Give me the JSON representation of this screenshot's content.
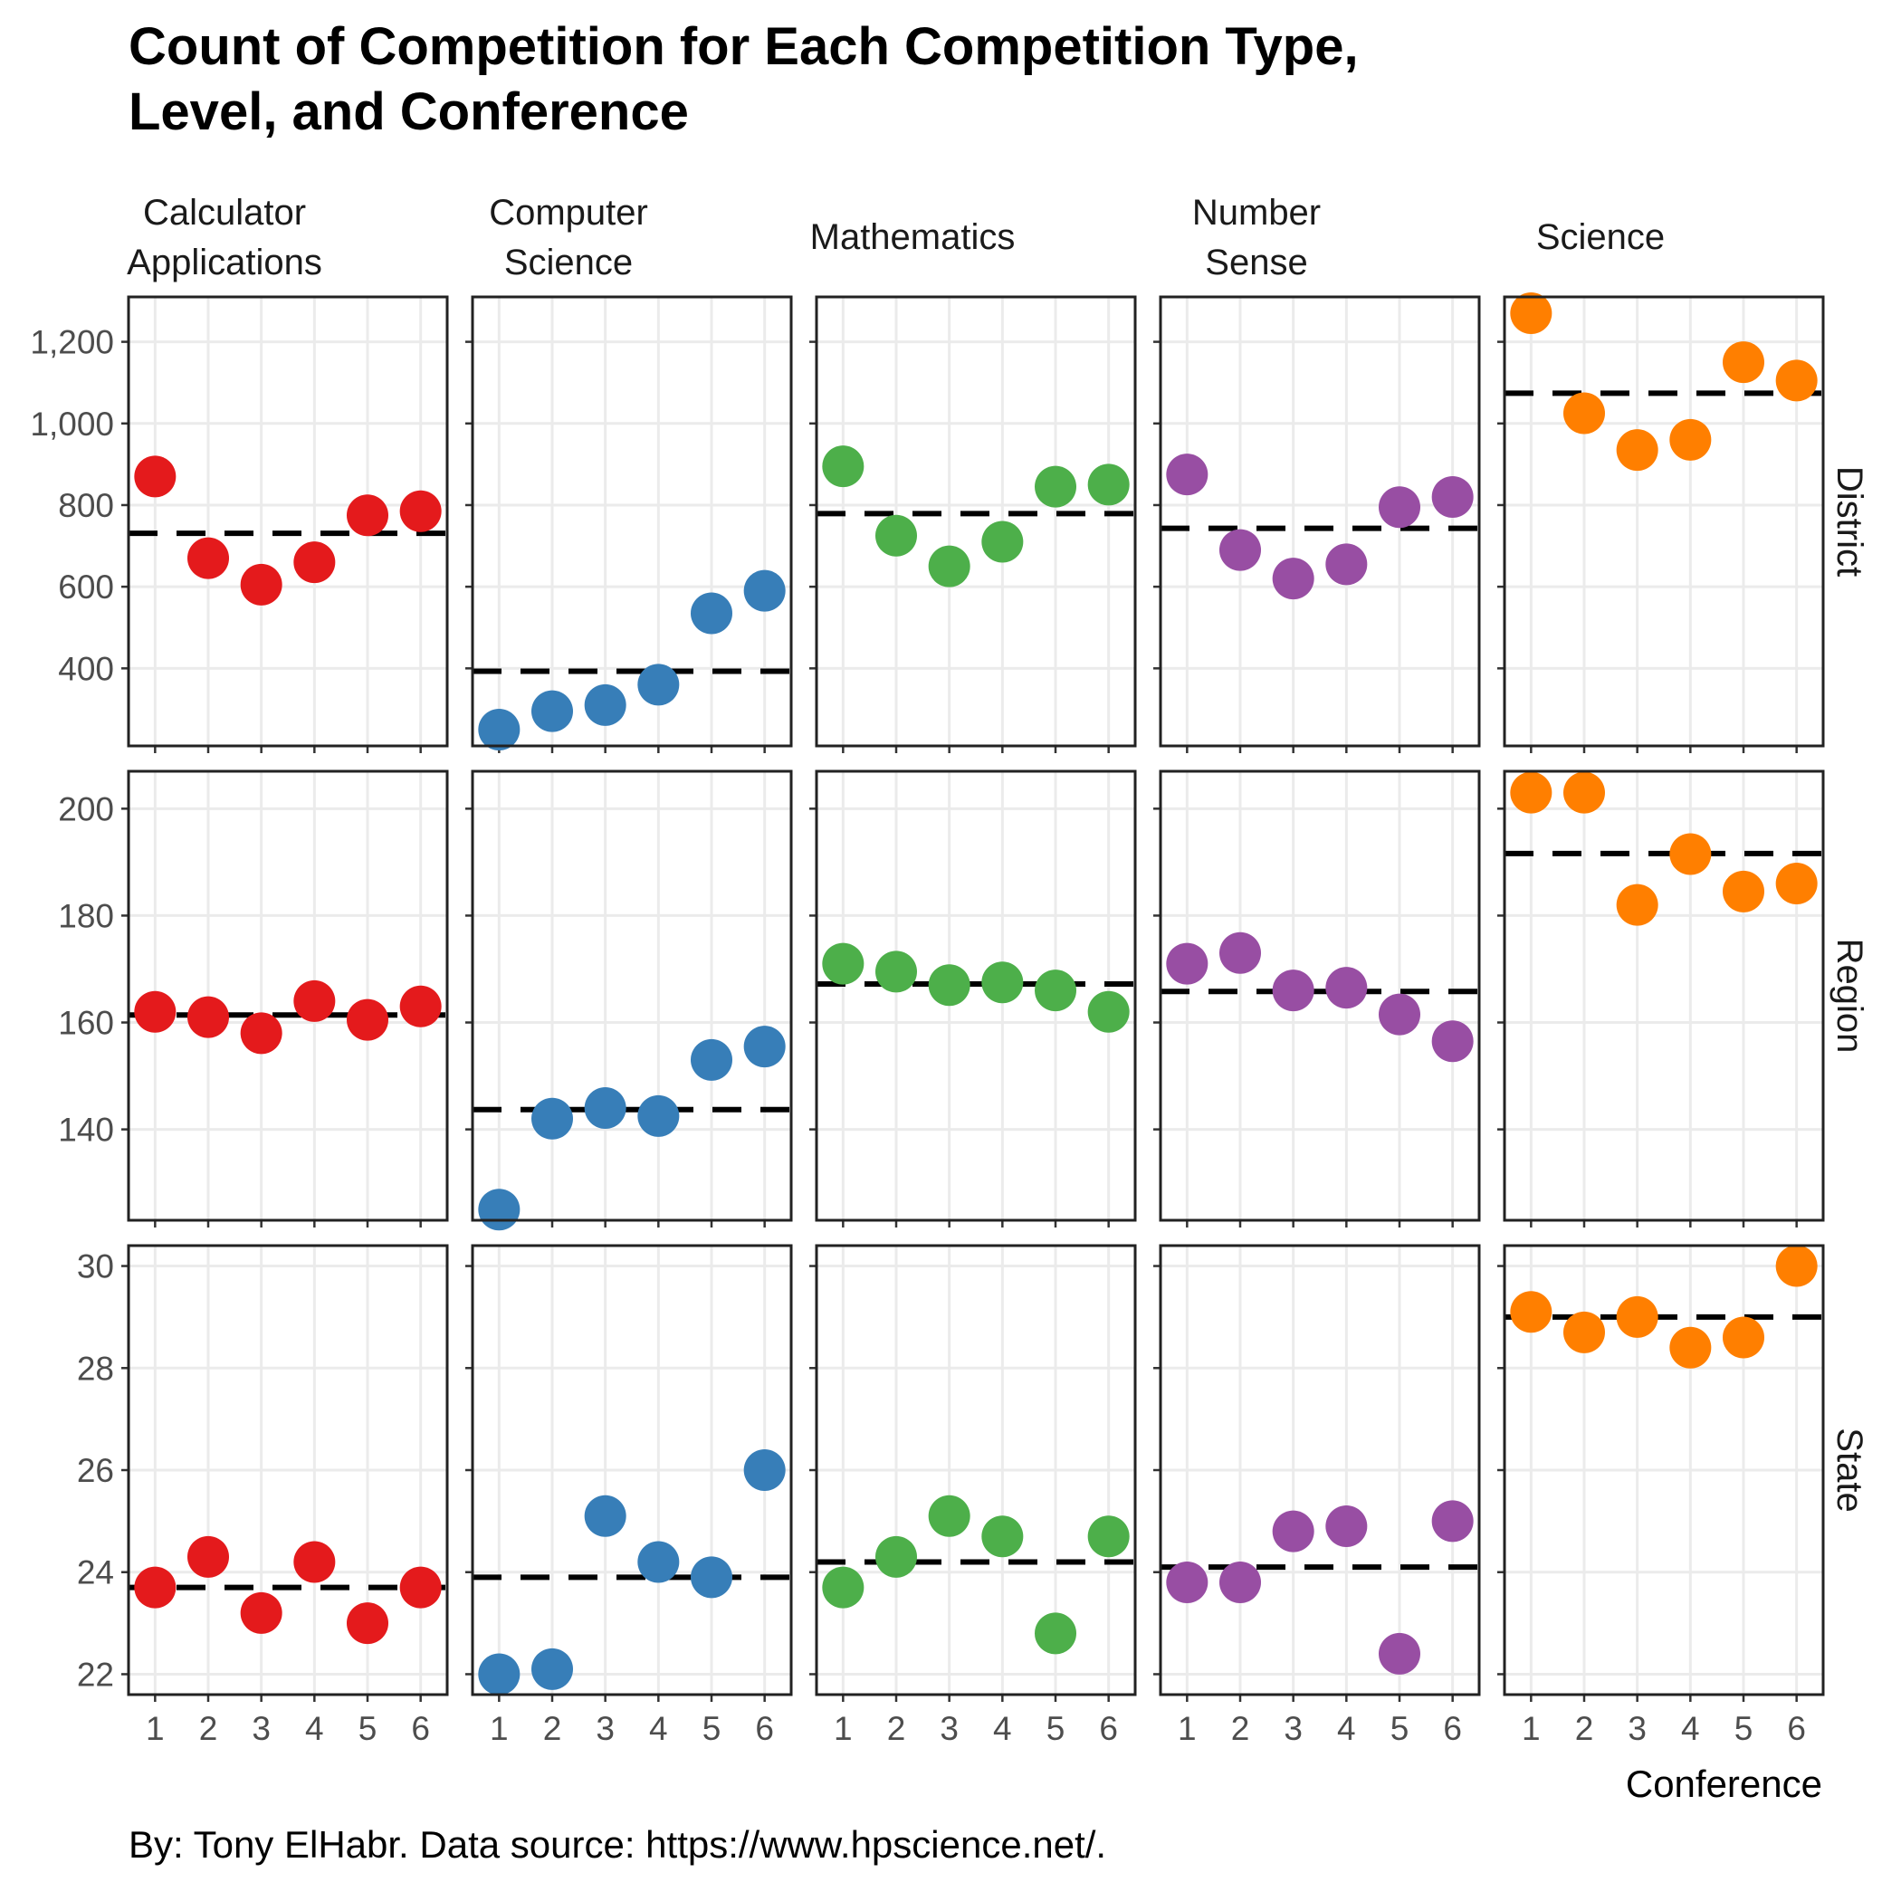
{
  "chart_data": {
    "type": "scatter",
    "title_lines": [
      "Count of Competition for Each Competition Type,",
      "Level, and Conference"
    ],
    "caption": "By: Tony ElHabr. Data source: https://www.hpscience.net/.",
    "xlabel": "Conference",
    "ylabel": "",
    "x": [
      1,
      2,
      3,
      4,
      5,
      6
    ],
    "x_tick_labels": [
      "1",
      "2",
      "3",
      "4",
      "5",
      "6"
    ],
    "grid": true,
    "reference_line": "dashed horizontal line at mean of each panel",
    "columns": [
      {
        "name": "Calculator Applications",
        "label_lines": [
          "Calculator",
          "Applications"
        ],
        "color": "#E41A1C"
      },
      {
        "name": "Computer Science",
        "label_lines": [
          "Computer",
          "Science"
        ],
        "color": "#377EB8"
      },
      {
        "name": "Mathematics",
        "label_lines": [
          "Mathematics"
        ],
        "color": "#4DAF4A"
      },
      {
        "name": "Number Sense",
        "label_lines": [
          "Number",
          "Sense"
        ],
        "color": "#984EA3"
      },
      {
        "name": "Science",
        "label_lines": [
          "Science"
        ],
        "color": "#FF7F00"
      }
    ],
    "rows": [
      {
        "name": "District",
        "ylim": [
          210,
          1310
        ],
        "y_ticks": [
          400,
          600,
          800,
          1000,
          1200
        ],
        "y_tick_labels": [
          "400",
          "600",
          "800",
          "1,000",
          "1,200"
        ],
        "series": [
          {
            "values": [
              870,
              670,
              605,
              660,
              775,
              785
            ],
            "mean": 731
          },
          {
            "values": [
              250,
              295,
              310,
              360,
              535,
              590
            ],
            "mean": 393
          },
          {
            "values": [
              895,
              725,
              650,
              710,
              845,
              850
            ],
            "mean": 779
          },
          {
            "values": [
              875,
              690,
              620,
              655,
              795,
              820
            ],
            "mean": 743
          },
          {
            "values": [
              1270,
              1025,
              935,
              960,
              1150,
              1105
            ],
            "mean": 1074
          }
        ]
      },
      {
        "name": "Region",
        "ylim": [
          123,
          207
        ],
        "y_ticks": [
          140,
          160,
          180,
          200
        ],
        "y_tick_labels": [
          "140",
          "160",
          "180",
          "200"
        ],
        "series": [
          {
            "values": [
              162,
              161,
              158,
              164,
              160.5,
              163
            ],
            "mean": 161.4
          },
          {
            "values": [
              125,
              142,
              144,
              142.5,
              153,
              155.5
            ],
            "mean": 143.7
          },
          {
            "values": [
              171,
              169.5,
              167,
              167.5,
              166,
              162
            ],
            "mean": 167.2
          },
          {
            "values": [
              171,
              173,
              166,
              166.5,
              161.5,
              156.5
            ],
            "mean": 165.8
          },
          {
            "values": [
              203,
              203,
              182,
              191.5,
              184.5,
              186
            ],
            "mean": 191.6
          }
        ]
      },
      {
        "name": "State",
        "ylim": [
          21.6,
          30.4
        ],
        "y_ticks": [
          22,
          24,
          26,
          28,
          30
        ],
        "y_tick_labels": [
          "22",
          "24",
          "26",
          "28",
          "30"
        ],
        "series": [
          {
            "values": [
              23.7,
              24.3,
              23.2,
              24.2,
              23,
              23.7
            ],
            "mean": 23.7
          },
          {
            "values": [
              22,
              22.1,
              25.1,
              24.2,
              23.9,
              26
            ],
            "mean": 23.9
          },
          {
            "values": [
              23.7,
              24.3,
              25.1,
              24.7,
              22.8,
              24.7
            ],
            "mean": 24.2
          },
          {
            "values": [
              23.8,
              23.8,
              24.8,
              24.9,
              22.4,
              25
            ],
            "mean": 24.1
          },
          {
            "values": [
              29.1,
              28.7,
              29,
              28.4,
              28.6,
              30
            ],
            "mean": 29
          }
        ]
      }
    ]
  }
}
